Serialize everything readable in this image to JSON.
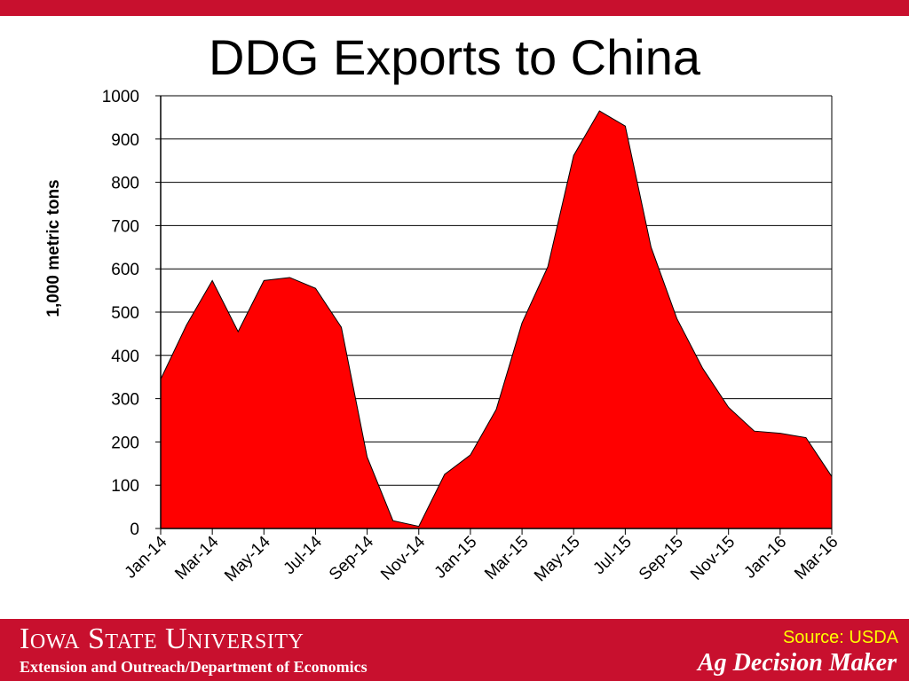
{
  "colors": {
    "accent": "#c8102e",
    "series_fill": "#ff0000",
    "source_text": "#ffff00"
  },
  "footer": {
    "university": "Iowa State University",
    "department": "Extension and Outreach/Department of Economics",
    "source": "Source: USDA",
    "brand": "Ag Decision Maker"
  },
  "chart_data": {
    "type": "area",
    "title": "DDG Exports to China",
    "xlabel": "",
    "ylabel": "1,000 metric tons",
    "ylim": [
      0,
      1000
    ],
    "yticks": [
      0,
      100,
      200,
      300,
      400,
      500,
      600,
      700,
      800,
      900,
      1000
    ],
    "grid": true,
    "x": [
      "Jan-14",
      "Feb-14",
      "Mar-14",
      "Apr-14",
      "May-14",
      "Jun-14",
      "Jul-14",
      "Aug-14",
      "Sep-14",
      "Oct-14",
      "Nov-14",
      "Dec-14",
      "Jan-15",
      "Feb-15",
      "Mar-15",
      "Apr-15",
      "May-15",
      "Jun-15",
      "Jul-15",
      "Aug-15",
      "Sep-15",
      "Oct-15",
      "Nov-15",
      "Dec-15",
      "Jan-16",
      "Feb-16",
      "Mar-16"
    ],
    "xtick_labels": [
      "Jan-14",
      "Mar-14",
      "May-14",
      "Jul-14",
      "Sep-14",
      "Nov-14",
      "Jan-15",
      "Mar-15",
      "May-15",
      "Jul-15",
      "Sep-15",
      "Nov-15",
      "Jan-16",
      "Mar-16"
    ],
    "values": [
      345,
      470,
      573,
      455,
      573,
      580,
      555,
      465,
      165,
      18,
      5,
      125,
      170,
      275,
      475,
      605,
      862,
      965,
      930,
      650,
      485,
      370,
      280,
      225,
      220,
      210,
      120
    ]
  }
}
